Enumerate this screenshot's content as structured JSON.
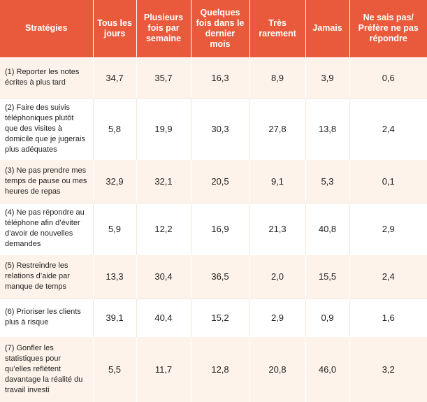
{
  "headers": [
    "Stratégies",
    "Tous les jours",
    "Plusieurs fois par semaine",
    "Quelques fois dans le dernier mois",
    "Très rarement",
    "Jamais",
    "Ne sais pas/ Préfère ne pas répondre"
  ],
  "rows": [
    {
      "label": "(1) Reporter les notes écrites à plus tard",
      "values": [
        "34,7",
        "35,7",
        "16,3",
        "8,9",
        "3,9",
        "0,6"
      ]
    },
    {
      "label": "(2) Faire des suivis téléphoniques plutôt que des visites à domicile que je jugerais plus adéquates",
      "values": [
        "5,8",
        "19,9",
        "30,3",
        "27,8",
        "13,8",
        "2,4"
      ]
    },
    {
      "label": "(3) Ne pas prendre mes temps de pause ou mes heures de repas",
      "values": [
        "32,9",
        "32,1",
        "20,5",
        "9,1",
        "5,3",
        "0,1"
      ]
    },
    {
      "label": "(4) Ne pas répondre au téléphone afin d’éviter d’avoir de nouvelles demandes",
      "values": [
        "5,9",
        "12,2",
        "16,9",
        "21,3",
        "40,8",
        "2,9"
      ]
    },
    {
      "label": "(5) Restreindre les relations d’aide par manque de temps",
      "values": [
        "13,3",
        "30,4",
        "36,5",
        "2,0",
        "15,5",
        "2,4"
      ]
    },
    {
      "label": "(6) Prioriser les clients plus à risque",
      "values": [
        "39,1",
        "40,4",
        "15,2",
        "2,9",
        "0,9",
        "1,6"
      ]
    },
    {
      "label": "(7) Gonfler les statistiques pour qu’elles reflètent davantage la réalité du travail investi",
      "values": [
        "5,5",
        "11,7",
        "12,8",
        "20,8",
        "46,0",
        "3,2"
      ]
    }
  ],
  "colors": {
    "header_bg": "#e95a3c",
    "header_text": "#ffffff",
    "row_alt_bg": "#fdf3ea",
    "row_bg": "#ffffff"
  }
}
